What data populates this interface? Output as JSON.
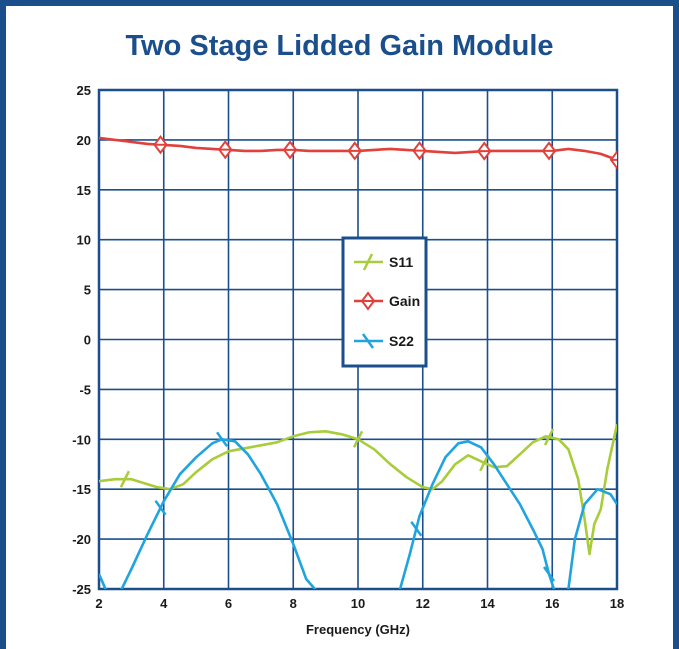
{
  "colors": {
    "frame": "#1b4f8c",
    "title": "#1b4f8c",
    "grid": "#1b4f8c",
    "s11": "#a9cc3b",
    "gain": "#e2403a",
    "s22": "#1fa4df"
  },
  "chart_data": {
    "type": "line",
    "title": "Two Stage Lidded Gain Module",
    "xlabel": "Frequency (GHz)",
    "ylabel": "",
    "xlim": [
      2,
      18
    ],
    "ylim": [
      -25,
      25
    ],
    "xticks": [
      2,
      4,
      6,
      8,
      10,
      12,
      14,
      16,
      18
    ],
    "yticks": [
      25,
      20,
      15,
      10,
      5,
      0,
      -5,
      -10,
      -15,
      -20,
      -25
    ],
    "legend_position": "center",
    "grid": true,
    "series": [
      {
        "name": "S11",
        "color": "#a9cc3b",
        "marker": "slash",
        "marker_x": [
          2.8,
          10,
          13.9,
          15.9
        ],
        "x": [
          2,
          2.5,
          3,
          3.4,
          3.8,
          4.2,
          4.6,
          5,
          5.5,
          6,
          6.5,
          7,
          7.5,
          8,
          8.5,
          9,
          9.5,
          10,
          10.5,
          11,
          11.5,
          12,
          12.3,
          12.6,
          13,
          13.4,
          13.8,
          14.2,
          14.6,
          15,
          15.4,
          15.8,
          16.2,
          16.5,
          16.8,
          17,
          17.15,
          17.3,
          17.5,
          17.7,
          18
        ],
        "values": [
          -14.2,
          -14.0,
          -14.0,
          -14.4,
          -14.8,
          -15.0,
          -14.5,
          -13.3,
          -12.0,
          -11.2,
          -10.9,
          -10.6,
          -10.3,
          -9.7,
          -9.3,
          -9.2,
          -9.5,
          -10.0,
          -11.0,
          -12.5,
          -13.8,
          -14.8,
          -15.0,
          -14.2,
          -12.5,
          -11.6,
          -12.2,
          -12.8,
          -12.7,
          -11.5,
          -10.3,
          -9.7,
          -10.0,
          -11.0,
          -14.0,
          -18.0,
          -21.5,
          -18.5,
          -17.0,
          -13.0,
          -8.5
        ]
      },
      {
        "name": "Gain",
        "color": "#e2403a",
        "marker": "diamond",
        "marker_x": [
          3.9,
          5.9,
          7.9,
          9.9,
          11.9,
          13.9,
          15.9,
          18
        ],
        "x": [
          2,
          2.5,
          3,
          3.5,
          4,
          4.5,
          5,
          5.5,
          6,
          6.5,
          7,
          7.5,
          8,
          8.5,
          9,
          9.5,
          10,
          10.5,
          11,
          11.5,
          12,
          12.5,
          13,
          13.5,
          14,
          14.5,
          15,
          15.5,
          16,
          16.5,
          17,
          17.5,
          18
        ],
        "values": [
          20.2,
          20.0,
          19.8,
          19.6,
          19.5,
          19.4,
          19.2,
          19.1,
          19.0,
          18.9,
          18.9,
          19.0,
          19.0,
          18.9,
          18.9,
          18.9,
          18.9,
          19.0,
          19.1,
          19.0,
          18.9,
          18.8,
          18.7,
          18.8,
          18.9,
          18.9,
          18.9,
          18.9,
          18.9,
          19.1,
          18.9,
          18.6,
          18.0
        ]
      },
      {
        "name": "S22",
        "color": "#1fa4df",
        "marker": "cross",
        "marker_x": [
          3.9,
          5.8,
          11.8,
          15.9
        ],
        "x": [
          2,
          2.2,
          2.4,
          2.7,
          3,
          3.5,
          4,
          4.5,
          5,
          5.5,
          5.8,
          6.2,
          6.6,
          7,
          7.5,
          8,
          8.4,
          8.8,
          9,
          10,
          11,
          11.3,
          11.6,
          11.9,
          12.3,
          12.7,
          13.1,
          13.4,
          13.8,
          14.2,
          14.6,
          15,
          15.4,
          15.7,
          15.9,
          16.1,
          16.3,
          16.5,
          16.7,
          17,
          17.4,
          17.8,
          18
        ],
        "values": [
          -23.5,
          -25,
          -26,
          -25,
          -23,
          -19.5,
          -16.2,
          -13.5,
          -11.8,
          -10.4,
          -10.0,
          -10.2,
          -11.5,
          -13.5,
          -16.5,
          -20.5,
          -24,
          -25.5,
          -27,
          -27,
          -27,
          -25,
          -21.5,
          -17.7,
          -14.5,
          -11.8,
          -10.4,
          -10.2,
          -10.8,
          -12.5,
          -14.5,
          -16.5,
          -19,
          -21,
          -23.5,
          -25.5,
          -26.5,
          -25,
          -20,
          -16.5,
          -15,
          -15.5,
          -16.5
        ]
      }
    ]
  }
}
